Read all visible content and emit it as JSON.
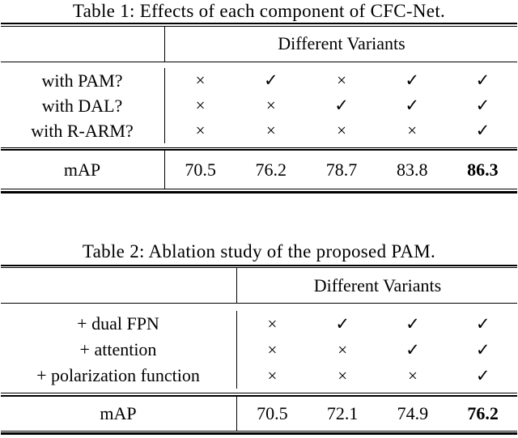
{
  "page": {
    "background": "#ffffff",
    "text_color": "#000000",
    "rule_color": "#000000"
  },
  "tables": [
    {
      "title": "Table 1: Effects of each component of CFC-Net.",
      "header_right": "Different Variants",
      "rows": [
        {
          "label": "with PAM?",
          "marks": [
            "×",
            "✓",
            "×",
            "✓",
            "✓"
          ]
        },
        {
          "label": "with DAL?",
          "marks": [
            "×",
            "×",
            "✓",
            "✓",
            "✓"
          ]
        },
        {
          "label": "with R-ARM?",
          "marks": [
            "×",
            "×",
            "×",
            "×",
            "✓"
          ]
        }
      ],
      "result_label": "mAP",
      "result_values": [
        "70.5",
        "76.2",
        "78.7",
        "83.8",
        "86.3"
      ],
      "best_value": "86.3"
    },
    {
      "title": "Table 2: Ablation study of the proposed PAM.",
      "header_right": "Different Variants",
      "rows": [
        {
          "label": "+ dual FPN",
          "marks": [
            "×",
            "✓",
            "✓",
            "✓"
          ]
        },
        {
          "label": "+ attention",
          "marks": [
            "×",
            "×",
            "✓",
            "✓"
          ]
        },
        {
          "label": "+ polarization function",
          "marks": [
            "×",
            "×",
            "×",
            "✓"
          ]
        }
      ],
      "result_label": "mAP",
      "result_values": [
        "70.5",
        "72.1",
        "74.9",
        "76.2"
      ],
      "best_value": "76.2"
    }
  ]
}
